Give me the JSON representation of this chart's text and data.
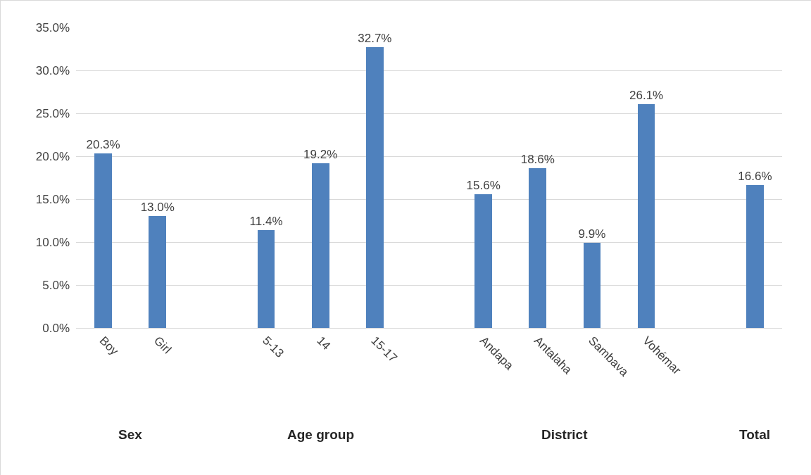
{
  "chart_data": {
    "type": "bar",
    "categories": [
      "Boy",
      "Girl",
      null,
      "5-13",
      "14",
      "15-17",
      null,
      "Andapa",
      "Antalaha",
      "Sambava",
      "Vohémar",
      null,
      null
    ],
    "values": [
      20.3,
      13.0,
      null,
      11.4,
      19.2,
      32.7,
      null,
      15.6,
      18.6,
      9.9,
      26.1,
      null,
      16.6
    ],
    "value_labels": [
      "20.3%",
      "13.0%",
      null,
      "11.4%",
      "19.2%",
      "32.7%",
      null,
      "15.6%",
      "18.6%",
      "9.9%",
      "26.1%",
      null,
      "16.6%"
    ],
    "color": "#4f81bd",
    "ylim": [
      0,
      35
    ],
    "yticks": [
      {
        "value": 0,
        "label": "0.0%"
      },
      {
        "value": 5,
        "label": "5.0%"
      },
      {
        "value": 10,
        "label": "10.0%"
      },
      {
        "value": 15,
        "label": "15.0%"
      },
      {
        "value": 20,
        "label": "20.0%"
      },
      {
        "value": 25,
        "label": "25.0%"
      },
      {
        "value": 30,
        "label": "30.0%"
      },
      {
        "value": 35,
        "label": "35.0%"
      }
    ],
    "grid": "y",
    "annotations": [
      "Sex",
      "Age group",
      "District",
      "Total"
    ]
  }
}
